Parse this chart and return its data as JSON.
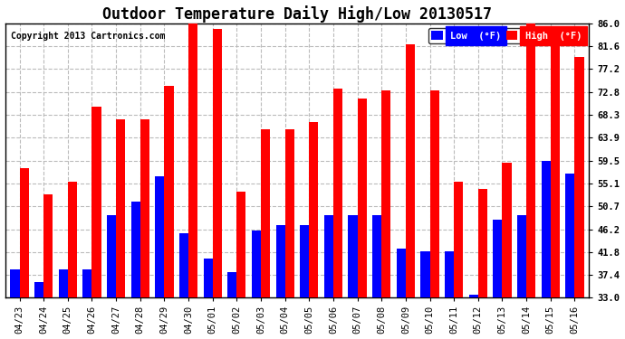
{
  "title": "Outdoor Temperature Daily High/Low 20130517",
  "copyright": "Copyright 2013 Cartronics.com",
  "legend_low": "Low  (°F)",
  "legend_high": "High  (°F)",
  "categories": [
    "04/23",
    "04/24",
    "04/25",
    "04/26",
    "04/27",
    "04/28",
    "04/29",
    "04/30",
    "05/01",
    "05/02",
    "05/03",
    "05/04",
    "05/05",
    "05/06",
    "05/07",
    "05/08",
    "05/09",
    "05/10",
    "05/11",
    "05/12",
    "05/13",
    "05/14",
    "05/15",
    "05/16"
  ],
  "highs": [
    58.0,
    53.0,
    55.5,
    70.0,
    67.5,
    67.5,
    74.0,
    86.5,
    85.0,
    53.5,
    65.5,
    65.5,
    67.0,
    73.5,
    71.5,
    73.0,
    82.0,
    73.0,
    55.5,
    54.0,
    59.0,
    86.5,
    82.5,
    79.5
  ],
  "lows": [
    38.5,
    36.0,
    38.5,
    38.5,
    49.0,
    51.5,
    56.5,
    45.5,
    40.5,
    38.0,
    46.0,
    47.0,
    47.0,
    49.0,
    49.0,
    49.0,
    42.5,
    42.0,
    42.0,
    33.5,
    48.0,
    49.0,
    59.5,
    57.0
  ],
  "high_color": "#ff0000",
  "low_color": "#0000ff",
  "bg_color": "#ffffff",
  "plot_bg_color": "#ffffff",
  "grid_color": "#bbbbbb",
  "yticks": [
    33.0,
    37.4,
    41.8,
    46.2,
    50.7,
    55.1,
    59.5,
    63.9,
    68.3,
    72.8,
    77.2,
    81.6,
    86.0
  ],
  "ymin": 33.0,
  "ymax": 86.0,
  "title_fontsize": 12,
  "tick_fontsize": 7.5,
  "bar_width": 0.38
}
